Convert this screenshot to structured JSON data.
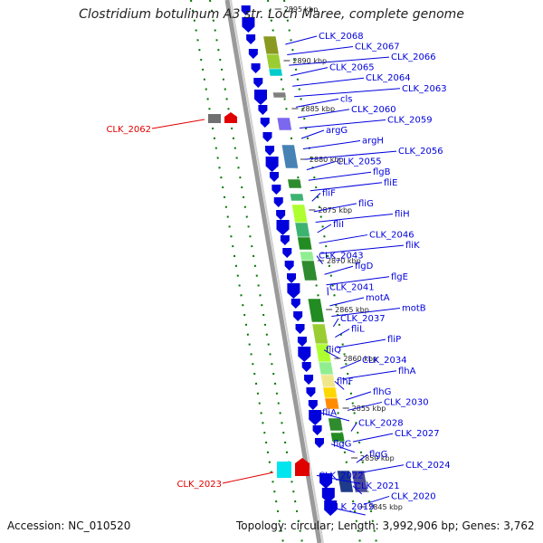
{
  "title": "Clostridium botulinum A3 str. Loch Maree, complete genome",
  "accession_text": "Accession: NC_010520",
  "summary_text": "Topology: circular; Length: 3,992,906 bp; Genes: 3,762",
  "colors": {
    "forward_strand": "#0000dd",
    "reverse_strand": "#e00000",
    "backbone": "#888888",
    "ticks": "#007700",
    "cds_match": "#2e8b2e"
  },
  "tick_labels": [
    "2895 kbp",
    "2890 kbp",
    "2885 kbp",
    "2880 kbp",
    "2875 kbp",
    "2870 kbp",
    "2865 kbp",
    "2860 kbp",
    "2855 kbp",
    "2850 kbp",
    "2845 kbp"
  ],
  "reverse_genes": [
    "CLK_2062",
    "CLK_2023"
  ],
  "forward_genes": [
    "CLK_2068",
    "CLK_2067",
    "CLK_2066",
    "CLK_2065",
    "CLK_2064",
    "CLK_2063",
    "cls",
    "CLK_2060",
    "CLK_2059",
    "argG",
    "argH",
    "CLK_2056",
    "CLK_2055",
    "flgB",
    "fliE",
    "fliF",
    "fliG",
    "fliH",
    "fliI",
    "CLK_2046",
    "fliK",
    "CLK_2043",
    "flgD",
    "flgE",
    "CLK_2041",
    "motA",
    "motB",
    "CLK_2037",
    "fliL",
    "fliP",
    "fliQ",
    "CLK_2034",
    "flhA",
    "flhF",
    "flhG",
    "CLK_2030",
    "fliA",
    "CLK_2028",
    "CLK_2027",
    "flgG",
    "flgG",
    "CLK_2024",
    "CLK_2022",
    "CLK_2021",
    "CLK_2020",
    "CLK_2019"
  ]
}
